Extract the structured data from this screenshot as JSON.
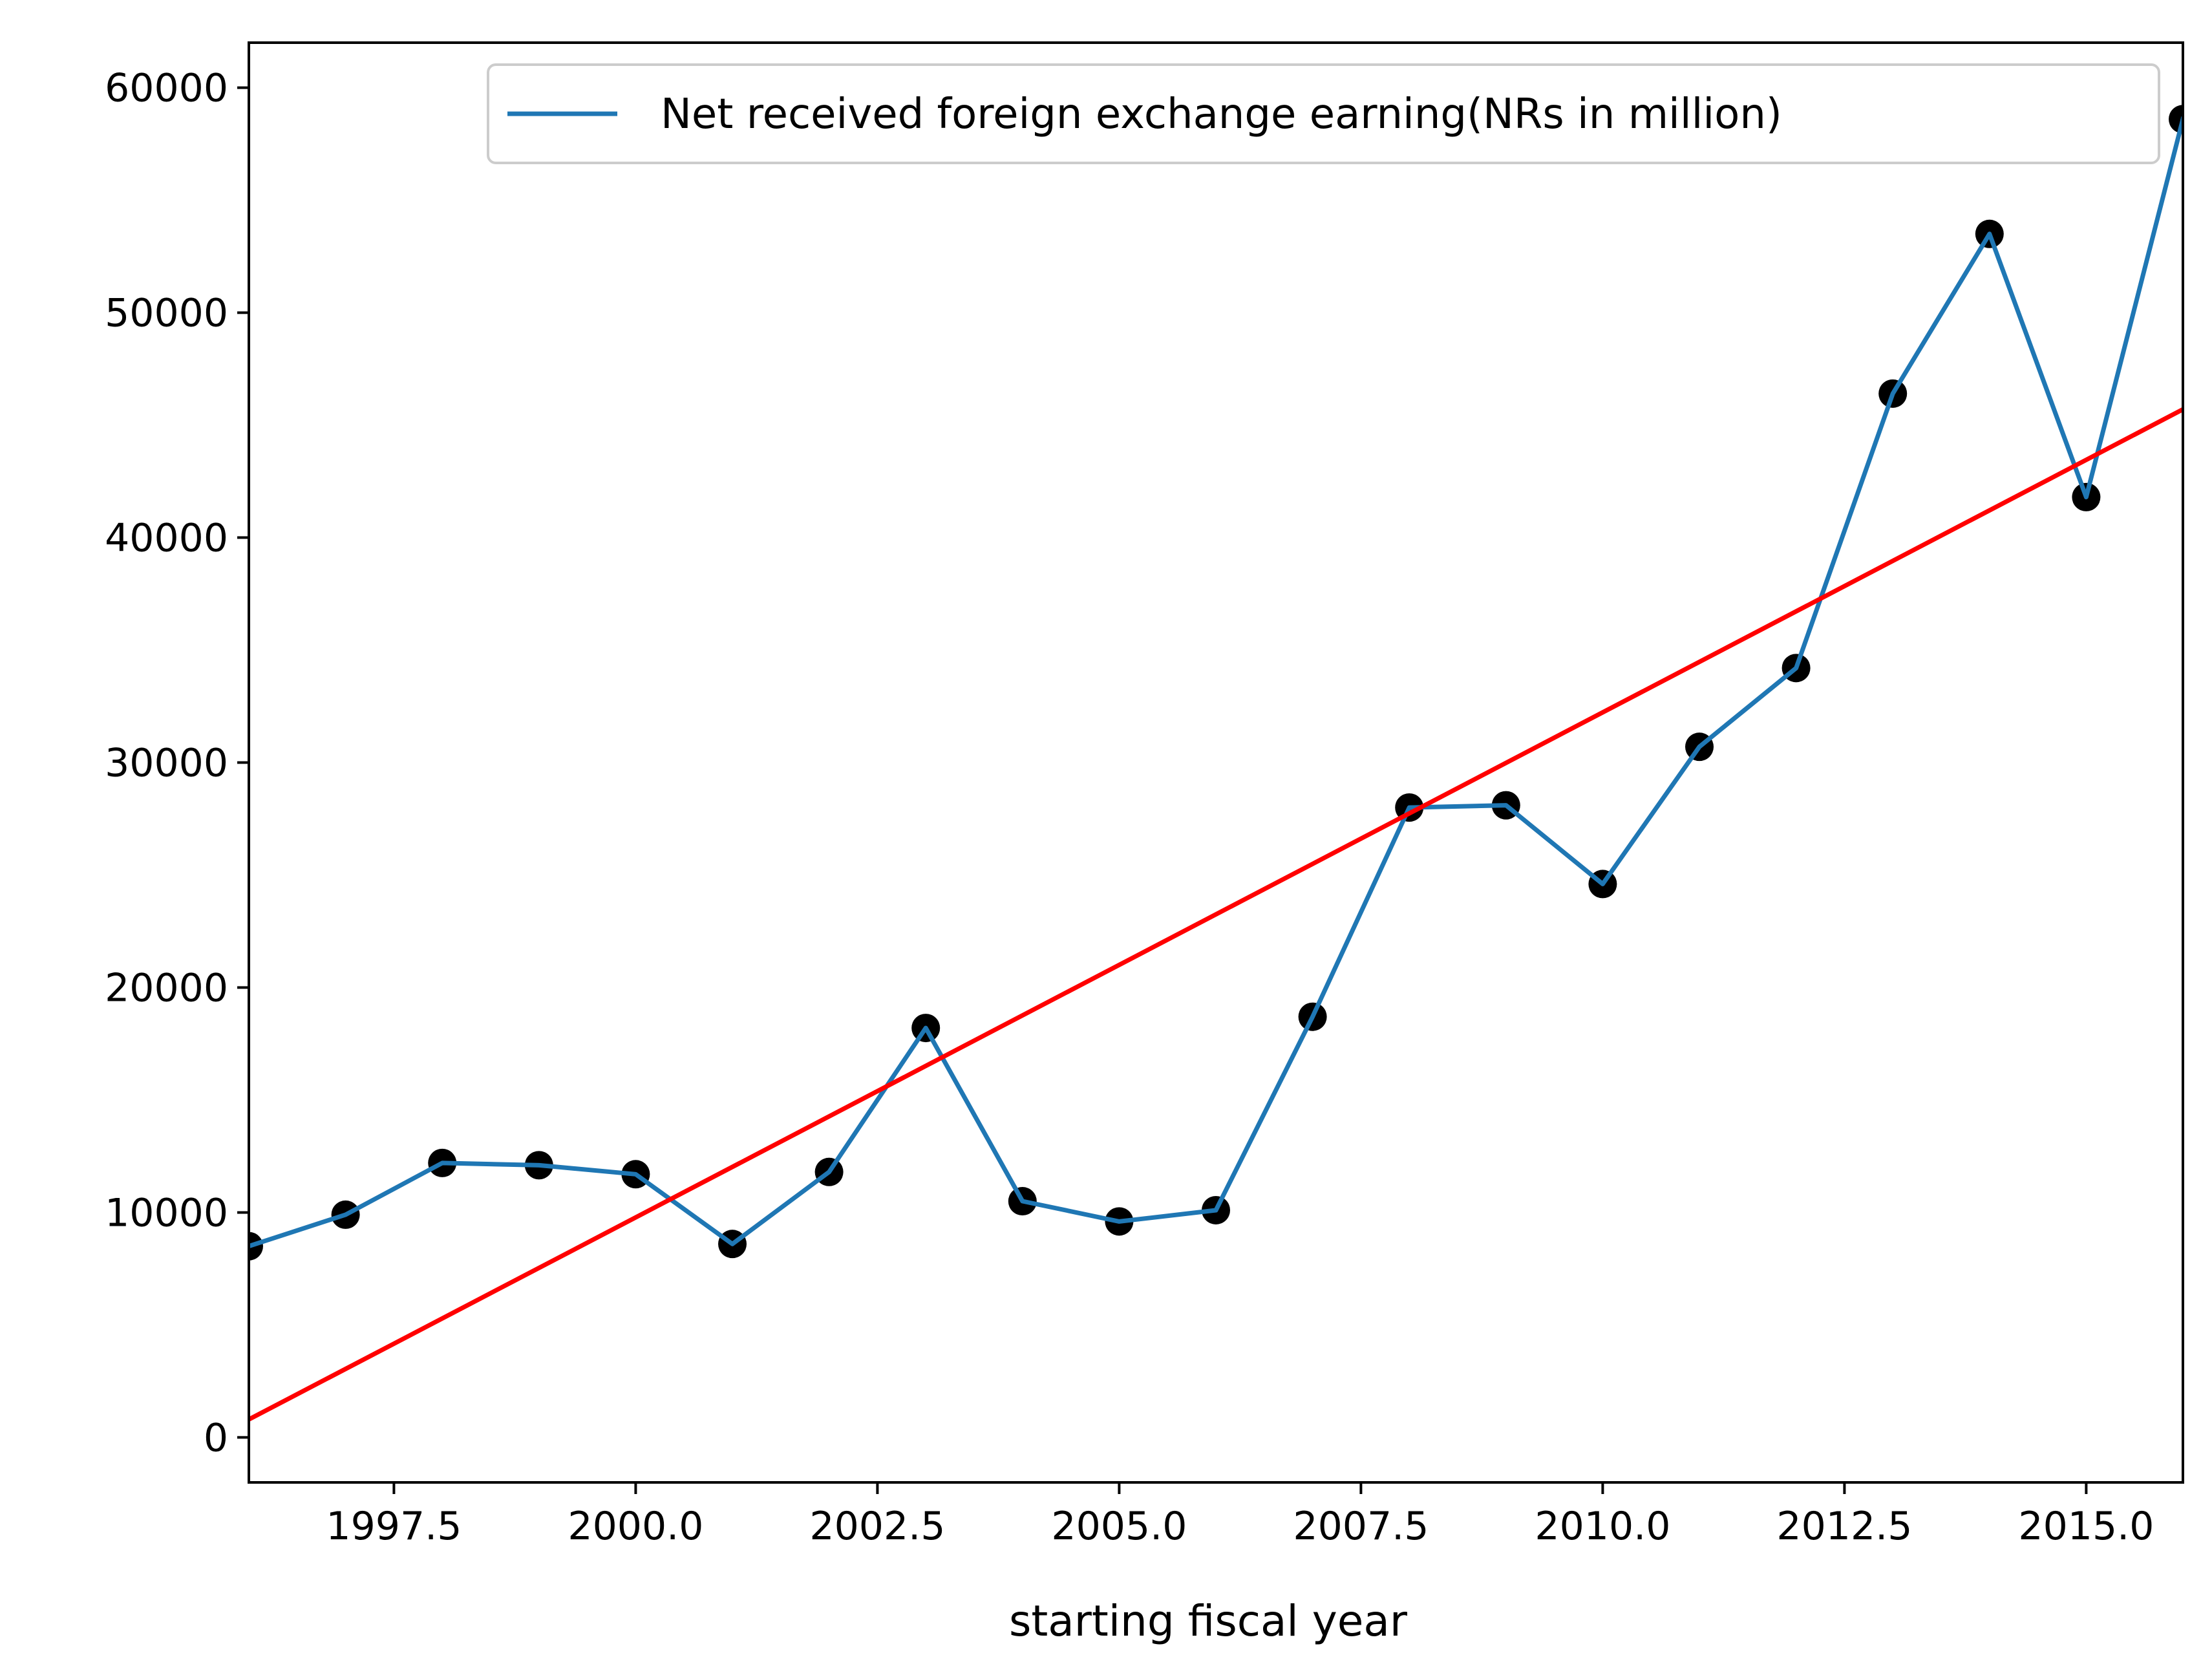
{
  "chart_data": {
    "type": "line",
    "title": "",
    "xlabel": "starting fiscal  year",
    "ylabel": "",
    "xlim": [
      1996,
      2016
    ],
    "ylim": [
      -2000,
      62000
    ],
    "x_ticks": [
      1997.5,
      2000.0,
      2002.5,
      2005.0,
      2007.5,
      2010.0,
      2012.5,
      2015.0
    ],
    "x_tick_labels": [
      "1997.5",
      "2000.0",
      "2002.5",
      "2005.0",
      "2007.5",
      "2010.0",
      "2012.5",
      "2015.0"
    ],
    "y_ticks": [
      0,
      10000,
      20000,
      30000,
      40000,
      50000,
      60000
    ],
    "y_tick_labels": [
      "0",
      "10000",
      "20000",
      "30000",
      "40000",
      "50000",
      "60000"
    ],
    "grid": false,
    "legend": {
      "placement": "top-right"
    },
    "series": [
      {
        "name": "Net received foreign exchange earning(NRs in million)",
        "style": "line+markers",
        "line_color": "#1f77b4",
        "marker_color": "#000000",
        "x": [
          1996,
          1997,
          1998,
          1999,
          2000,
          2001,
          2002,
          2003,
          2004,
          2005,
          2006,
          2007,
          2008,
          2009,
          2010,
          2011,
          2012,
          2013,
          2014,
          2015,
          2016
        ],
        "y": [
          8500,
          9900,
          12200,
          12100,
          11700,
          8600,
          11800,
          18200,
          10500,
          9600,
          10100,
          18700,
          28000,
          28100,
          24600,
          30700,
          34200,
          46400,
          53500,
          41800,
          58600
        ]
      },
      {
        "style": "trend-line",
        "line_color": "#ff0000",
        "x": [
          1996,
          2016
        ],
        "y": [
          800,
          45700
        ]
      }
    ]
  }
}
